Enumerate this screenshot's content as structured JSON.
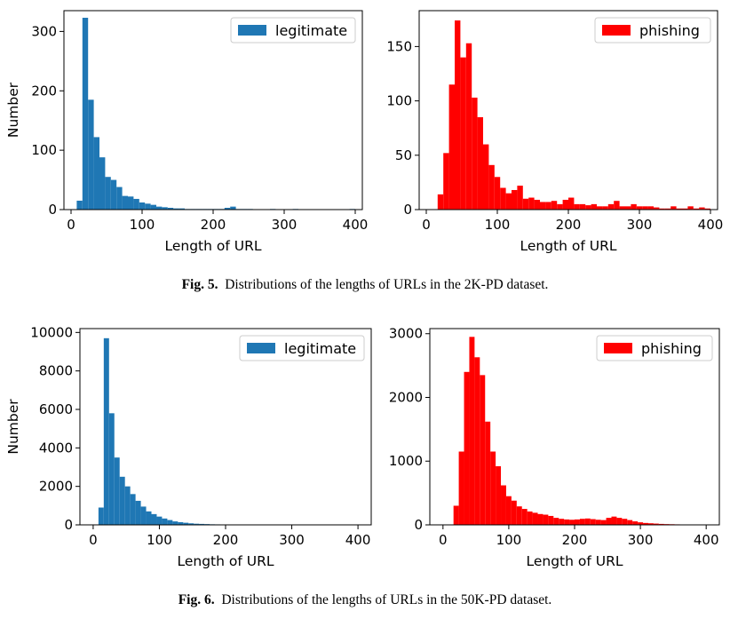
{
  "captions": [
    {
      "label": "Fig. 5.",
      "text": "Distributions of the lengths of URLs in the 2K-PD dataset."
    },
    {
      "label": "Fig. 6.",
      "text": "Distributions of the lengths of URLs in the 50K-PD dataset."
    }
  ],
  "chart_data": [
    {
      "type": "bar",
      "title": "",
      "xlabel": "Length of URL",
      "ylabel": "Number",
      "xlim": [
        -10,
        410
      ],
      "ylim": [
        0,
        335
      ],
      "xticks": [
        0,
        100,
        200,
        300,
        400
      ],
      "yticks": [
        0,
        100,
        200,
        300
      ],
      "bin_width": 8,
      "legend": "top-right",
      "series": [
        {
          "name": "legitimate",
          "color": "#1f77b4",
          "x": [
            8,
            16,
            24,
            32,
            40,
            48,
            56,
            64,
            72,
            80,
            88,
            96,
            104,
            112,
            120,
            128,
            136,
            144,
            152,
            160,
            168,
            176,
            184,
            192,
            200,
            208,
            216,
            224,
            232,
            240,
            248,
            256,
            264,
            272,
            280,
            288,
            296,
            304,
            312,
            320,
            328,
            336,
            344,
            352,
            360,
            368,
            376,
            384,
            392
          ],
          "values": [
            15,
            323,
            185,
            122,
            88,
            55,
            50,
            38,
            23,
            22,
            18,
            12,
            10,
            8,
            5,
            4,
            3,
            2,
            2,
            1,
            1,
            1,
            1,
            1,
            1,
            1,
            3,
            5,
            1,
            1,
            1,
            0,
            0,
            0,
            1,
            0,
            0,
            0,
            1,
            0,
            0,
            0,
            0,
            0,
            0,
            0,
            0,
            0,
            1
          ]
        }
      ]
    },
    {
      "type": "bar",
      "title": "",
      "xlabel": "Length of URL",
      "ylabel": "",
      "xlim": [
        -10,
        410
      ],
      "ylim": [
        0,
        183
      ],
      "xticks": [
        0,
        100,
        200,
        300,
        400
      ],
      "yticks": [
        0,
        50,
        100,
        150
      ],
      "bin_width": 8,
      "legend": "top-right",
      "series": [
        {
          "name": "phishing",
          "color": "#ff0000",
          "x": [
            16,
            24,
            32,
            40,
            48,
            56,
            64,
            72,
            80,
            88,
            96,
            104,
            112,
            120,
            128,
            136,
            144,
            152,
            160,
            168,
            176,
            184,
            192,
            200,
            208,
            216,
            224,
            232,
            240,
            248,
            256,
            264,
            272,
            280,
            288,
            296,
            304,
            312,
            320,
            328,
            336,
            344,
            352,
            360,
            368,
            376,
            384,
            392
          ],
          "values": [
            14,
            52,
            115,
            174,
            140,
            153,
            103,
            85,
            60,
            41,
            30,
            20,
            15,
            18,
            22,
            10,
            11,
            9,
            7,
            7,
            8,
            5,
            9,
            11,
            5,
            5,
            4,
            5,
            3,
            3,
            5,
            8,
            3,
            3,
            5,
            3,
            3,
            3,
            2,
            1,
            1,
            3,
            1,
            1,
            3,
            1,
            2,
            1
          ]
        }
      ]
    },
    {
      "type": "bar",
      "title": "",
      "xlabel": "Length of URL",
      "ylabel": "Number",
      "xlim": [
        -20,
        420
      ],
      "ylim": [
        0,
        10200
      ],
      "xticks": [
        0,
        100,
        200,
        300,
        400
      ],
      "yticks": [
        0,
        2000,
        4000,
        6000,
        8000,
        10000
      ],
      "bin_width": 8,
      "legend": "top-right",
      "series": [
        {
          "name": "legitimate",
          "color": "#1f77b4",
          "x": [
            8,
            16,
            24,
            32,
            40,
            48,
            56,
            64,
            72,
            80,
            88,
            96,
            104,
            112,
            120,
            128,
            136,
            144,
            152,
            160,
            168,
            176,
            184,
            192,
            200,
            208,
            216,
            224,
            232,
            240,
            248,
            256,
            264,
            272,
            280,
            288,
            296,
            304,
            312,
            320,
            328,
            336,
            344,
            352,
            360,
            368,
            376,
            384,
            392
          ],
          "values": [
            900,
            9700,
            5800,
            3500,
            2500,
            2000,
            1600,
            1250,
            950,
            700,
            560,
            430,
            330,
            250,
            180,
            140,
            110,
            80,
            60,
            50,
            40,
            30,
            25,
            20,
            18,
            15,
            12,
            10,
            8,
            7,
            6,
            5,
            5,
            4,
            4,
            3,
            3,
            3,
            2,
            2,
            2,
            2,
            2,
            1,
            1,
            1,
            1,
            1,
            1
          ]
        }
      ]
    },
    {
      "type": "bar",
      "title": "",
      "xlabel": "Length of URL",
      "ylabel": "",
      "xlim": [
        -20,
        420
      ],
      "ylim": [
        0,
        3080
      ],
      "xticks": [
        0,
        100,
        200,
        300,
        400
      ],
      "yticks": [
        0,
        1000,
        2000,
        3000
      ],
      "bin_width": 8,
      "legend": "top-right",
      "series": [
        {
          "name": "phishing",
          "color": "#ff0000",
          "x": [
            16,
            24,
            32,
            40,
            48,
            56,
            64,
            72,
            80,
            88,
            96,
            104,
            112,
            120,
            128,
            136,
            144,
            152,
            160,
            168,
            176,
            184,
            192,
            200,
            208,
            216,
            224,
            232,
            240,
            248,
            256,
            264,
            272,
            280,
            288,
            296,
            304,
            312,
            320,
            328,
            336,
            344,
            352,
            360,
            368,
            376,
            384,
            392
          ],
          "values": [
            300,
            1150,
            2400,
            2950,
            2630,
            2350,
            1620,
            1150,
            920,
            620,
            450,
            380,
            290,
            250,
            210,
            190,
            170,
            160,
            140,
            110,
            95,
            85,
            80,
            85,
            95,
            100,
            90,
            80,
            75,
            110,
            130,
            110,
            95,
            75,
            55,
            40,
            30,
            25,
            20,
            15,
            12,
            10,
            8,
            6,
            5,
            4,
            3,
            2
          ]
        }
      ]
    }
  ]
}
